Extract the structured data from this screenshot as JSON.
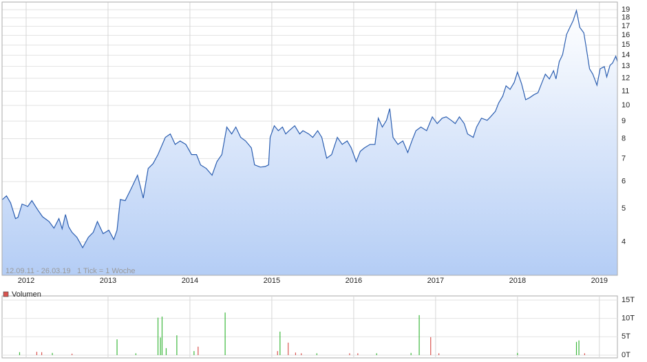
{
  "chart_data": [
    {
      "type": "line",
      "log_scale": true,
      "grid": true,
      "fill": true,
      "annotations": [
        "12.09.11 - 26.03.19",
        "1 Tick = 1 Woche"
      ],
      "xlim": [
        2011.706,
        2019.22
      ],
      "xticks": [
        2012,
        2013,
        2014,
        2015,
        2016,
        2017,
        2018,
        2019
      ],
      "ylim": [
        3.2,
        20
      ],
      "yticks": [
        4,
        5,
        6,
        7,
        8,
        9,
        10,
        11,
        12,
        13,
        14,
        15,
        16,
        17,
        18,
        19
      ],
      "series": [
        {
          "color": "#2a5db0",
          "x": [
            2011.71,
            2011.76,
            2011.81,
            2011.87,
            2011.9,
            2011.95,
            2012.02,
            2012.07,
            2012.14,
            2012.2,
            2012.28,
            2012.34,
            2012.4,
            2012.44,
            2012.48,
            2012.52,
            2012.56,
            2012.62,
            2012.69,
            2012.76,
            2012.82,
            2012.87,
            2012.94,
            2013.01,
            2013.07,
            2013.11,
            2013.15,
            2013.21,
            2013.28,
            2013.36,
            2013.43,
            2013.49,
            2013.55,
            2013.61,
            2013.7,
            2013.76,
            2013.82,
            2013.88,
            2013.95,
            2014.02,
            2014.08,
            2014.13,
            2014.2,
            2014.27,
            2014.33,
            2014.39,
            2014.45,
            2014.51,
            2014.56,
            2014.62,
            2014.68,
            2014.75,
            2014.79,
            2014.86,
            2014.92,
            2014.96,
            2014.98,
            2015.03,
            2015.08,
            2015.13,
            2015.17,
            2015.21,
            2015.28,
            2015.34,
            2015.38,
            2015.45,
            2015.5,
            2015.56,
            2015.61,
            2015.67,
            2015.73,
            2015.8,
            2015.86,
            2015.92,
            2015.97,
            2016.03,
            2016.08,
            2016.13,
            2016.2,
            2016.26,
            2016.3,
            2016.35,
            2016.4,
            2016.44,
            2016.48,
            2016.54,
            2016.6,
            2016.66,
            2016.71,
            2016.76,
            2016.82,
            2016.89,
            2016.96,
            2017.02,
            2017.08,
            2017.13,
            2017.19,
            2017.24,
            2017.29,
            2017.35,
            2017.39,
            2017.46,
            2017.5,
            2017.56,
            2017.63,
            2017.67,
            2017.73,
            2017.77,
            2017.82,
            2017.86,
            2017.91,
            2017.96,
            2018.0,
            2018.05,
            2018.1,
            2018.15,
            2018.2,
            2018.25,
            2018.3,
            2018.34,
            2018.39,
            2018.44,
            2018.47,
            2018.51,
            2018.55,
            2018.6,
            2018.64,
            2018.68,
            2018.72,
            2018.76,
            2018.81,
            2018.84,
            2018.88,
            2018.92,
            2018.97,
            2019.01,
            2019.06,
            2019.09,
            2019.13,
            2019.16,
            2019.2,
            2019.22
          ],
          "values": [
            5.32,
            5.45,
            5.2,
            4.68,
            4.72,
            5.16,
            5.08,
            5.28,
            4.97,
            4.74,
            4.59,
            4.39,
            4.68,
            4.37,
            4.81,
            4.43,
            4.27,
            4.13,
            3.85,
            4.13,
            4.27,
            4.59,
            4.23,
            4.33,
            4.07,
            4.33,
            5.32,
            5.28,
            5.71,
            6.26,
            5.37,
            6.55,
            6.77,
            7.19,
            8.07,
            8.26,
            7.7,
            7.88,
            7.7,
            7.19,
            7.19,
            6.71,
            6.55,
            6.26,
            6.86,
            7.19,
            8.65,
            8.26,
            8.65,
            8.07,
            7.88,
            7.52,
            6.71,
            6.61,
            6.64,
            6.71,
            8.07,
            8.72,
            8.44,
            8.65,
            8.26,
            8.44,
            8.72,
            8.26,
            8.44,
            8.26,
            8.07,
            8.44,
            8.07,
            7.02,
            7.19,
            8.07,
            7.7,
            7.88,
            7.52,
            6.86,
            7.35,
            7.52,
            7.7,
            7.7,
            9.18,
            8.65,
            9.05,
            9.79,
            8.07,
            7.7,
            7.88,
            7.29,
            7.88,
            8.44,
            8.65,
            8.44,
            9.26,
            8.85,
            9.18,
            9.26,
            9.05,
            8.85,
            9.26,
            8.85,
            8.26,
            8.07,
            8.65,
            9.18,
            9.05,
            9.26,
            9.61,
            10.16,
            10.64,
            11.4,
            11.14,
            11.67,
            12.5,
            11.56,
            10.39,
            10.54,
            10.74,
            10.89,
            11.67,
            12.33,
            11.94,
            12.62,
            11.94,
            13.41,
            14.04,
            16.11,
            16.88,
            17.67,
            18.9,
            16.88,
            16.26,
            14.7,
            12.79,
            12.33,
            11.45,
            12.79,
            12.97,
            12.11,
            13.09,
            13.28,
            13.91,
            13.41
          ]
        }
      ]
    },
    {
      "type": "bar",
      "legend": "top-left",
      "grid": true,
      "xlim": [
        2011.706,
        2019.22
      ],
      "xticks": [
        2012,
        2013,
        2014,
        2015,
        2016,
        2017,
        2018,
        2019
      ],
      "ylim": [
        0,
        15
      ],
      "yticks": [
        {
          "value": 0,
          "label": "0T"
        },
        {
          "value": 5,
          "label": "5T"
        },
        {
          "value": 10,
          "label": "10T"
        },
        {
          "value": 15,
          "label": "15T"
        }
      ],
      "series": [
        {
          "name": "Volumen",
          "color": "#d9534f",
          "x": [
            2011.92,
            2012.13,
            2012.19,
            2012.32,
            2012.56,
            2013.11,
            2013.34,
            2013.61,
            2013.64,
            2013.66,
            2013.71,
            2013.84,
            2014.05,
            2014.1,
            2014.43,
            2015.07,
            2015.1,
            2015.2,
            2015.29,
            2015.36,
            2015.55,
            2015.95,
            2016.05,
            2016.28,
            2016.7,
            2016.8,
            2016.94,
            2017.04,
            2018.0,
            2018.72,
            2018.75,
            2018.82
          ],
          "values": [
            0.8,
            0.9,
            0.8,
            0.6,
            0.4,
            4.3,
            0.5,
            10.2,
            4.8,
            10.5,
            1.9,
            5.4,
            1.1,
            2.3,
            11.6,
            1.1,
            6.4,
            3.4,
            0.7,
            0.5,
            0.5,
            0.5,
            0.5,
            0.5,
            0.6,
            10.9,
            4.9,
            0.5,
            0.6,
            3.6,
            4.0,
            0.5
          ],
          "colors": [
            "#3cb83c",
            "#d9534f",
            "#d9534f",
            "#3cb83c",
            "#d9534f",
            "#3cb83c",
            "#3cb83c",
            "#3cb83c",
            "#3cb83c",
            "#3cb83c",
            "#3cb83c",
            "#3cb83c",
            "#3cb83c",
            "#d9534f",
            "#3cb83c",
            "#d9534f",
            "#3cb83c",
            "#d9534f",
            "#d9534f",
            "#d9534f",
            "#3cb83c",
            "#d9534f",
            "#d9534f",
            "#3cb83c",
            "#3cb83c",
            "#3cb83c",
            "#d9534f",
            "#d9534f",
            "#3cb83c",
            "#3cb83c",
            "#3cb83c",
            "#d9534f"
          ]
        }
      ]
    }
  ]
}
